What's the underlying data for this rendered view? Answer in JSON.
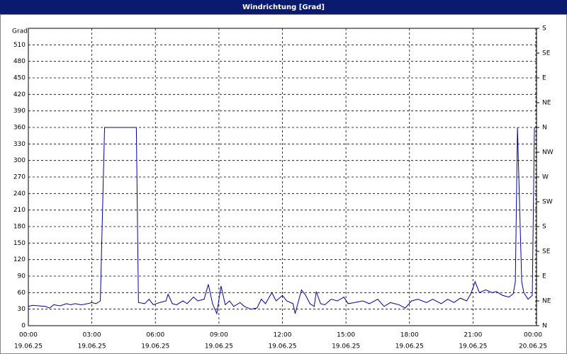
{
  "chart_data": {
    "type": "line",
    "title": "Windrichtung [Grad]",
    "y_label": "Grad",
    "xlim": [
      0,
      24
    ],
    "ylim": [
      0,
      540
    ],
    "xticks": [
      {
        "value": 0,
        "label": "00:00",
        "date": "19.06.25"
      },
      {
        "value": 3,
        "label": "03:00",
        "date": "19.06.25"
      },
      {
        "value": 6,
        "label": "06:00",
        "date": "19.06.25"
      },
      {
        "value": 9,
        "label": "09:00",
        "date": "19.06.25"
      },
      {
        "value": 12,
        "label": "12:00",
        "date": "19.06.25"
      },
      {
        "value": 15,
        "label": "15:00",
        "date": "19.06.25"
      },
      {
        "value": 18,
        "label": "18:00",
        "date": "19.06.25"
      },
      {
        "value": 21,
        "label": "21:00",
        "date": "19.06.25"
      },
      {
        "value": 24,
        "label": "00:00",
        "date": "20.06.25"
      }
    ],
    "yticks": [
      0,
      30,
      60,
      90,
      120,
      150,
      180,
      210,
      240,
      270,
      300,
      330,
      360,
      390,
      420,
      450,
      480,
      510
    ],
    "y2lim": [
      0,
      540
    ],
    "y2ticks": [
      {
        "value": 0,
        "label": "N"
      },
      {
        "value": 45,
        "label": "NE"
      },
      {
        "value": 90,
        "label": "E"
      },
      {
        "value": 135,
        "label": "SE"
      },
      {
        "value": 180,
        "label": "S"
      },
      {
        "value": 225,
        "label": "SW"
      },
      {
        "value": 270,
        "label": "W"
      },
      {
        "value": 315,
        "label": "NW"
      },
      {
        "value": 360,
        "label": "N"
      },
      {
        "value": 405,
        "label": "NE"
      },
      {
        "value": 450,
        "label": "E"
      },
      {
        "value": 495,
        "label": "SE"
      },
      {
        "value": 540,
        "label": "S"
      }
    ],
    "grid": true,
    "color": "#0000a0",
    "x": [
      0,
      0.2,
      0.5,
      0.8,
      1.0,
      1.2,
      1.5,
      1.8,
      2.0,
      2.2,
      2.5,
      2.8,
      3.0,
      3.2,
      3.4,
      3.6,
      5.1,
      5.2,
      5.5,
      5.7,
      5.9,
      6.2,
      6.5,
      6.6,
      6.8,
      7.0,
      7.3,
      7.5,
      7.8,
      8.0,
      8.3,
      8.5,
      8.7,
      8.9,
      9.1,
      9.3,
      9.5,
      9.7,
      10.0,
      10.2,
      10.5,
      10.8,
      11.0,
      11.2,
      11.5,
      11.7,
      12.0,
      12.2,
      12.5,
      12.6,
      12.9,
      13.1,
      13.3,
      13.5,
      13.6,
      13.8,
      14.0,
      14.3,
      14.6,
      14.9,
      15.1,
      15.4,
      15.8,
      16.1,
      16.5,
      16.8,
      17.1,
      17.5,
      17.8,
      18.1,
      18.4,
      18.8,
      19.1,
      19.5,
      19.8,
      20.1,
      20.4,
      20.7,
      20.9,
      21.1,
      21.3,
      21.6,
      21.9,
      22.1,
      22.4,
      22.7,
      22.9,
      23.0,
      23.1,
      23.3,
      23.4,
      23.6,
      23.8,
      23.9
    ],
    "values": [
      35,
      37,
      36,
      35,
      32,
      38,
      36,
      40,
      38,
      40,
      38,
      40,
      42,
      40,
      45,
      360,
      360,
      42,
      40,
      48,
      38,
      42,
      45,
      57,
      40,
      38,
      45,
      40,
      52,
      45,
      48,
      75,
      40,
      22,
      72,
      38,
      45,
      35,
      42,
      35,
      30,
      32,
      48,
      40,
      60,
      45,
      55,
      45,
      40,
      22,
      65,
      55,
      40,
      35,
      62,
      40,
      38,
      48,
      45,
      52,
      40,
      42,
      45,
      40,
      48,
      35,
      42,
      38,
      32,
      45,
      48,
      42,
      48,
      40,
      48,
      42,
      50,
      45,
      58,
      80,
      60,
      65,
      60,
      62,
      55,
      52,
      58,
      80,
      360,
      80,
      60,
      48,
      55,
      360
    ]
  }
}
